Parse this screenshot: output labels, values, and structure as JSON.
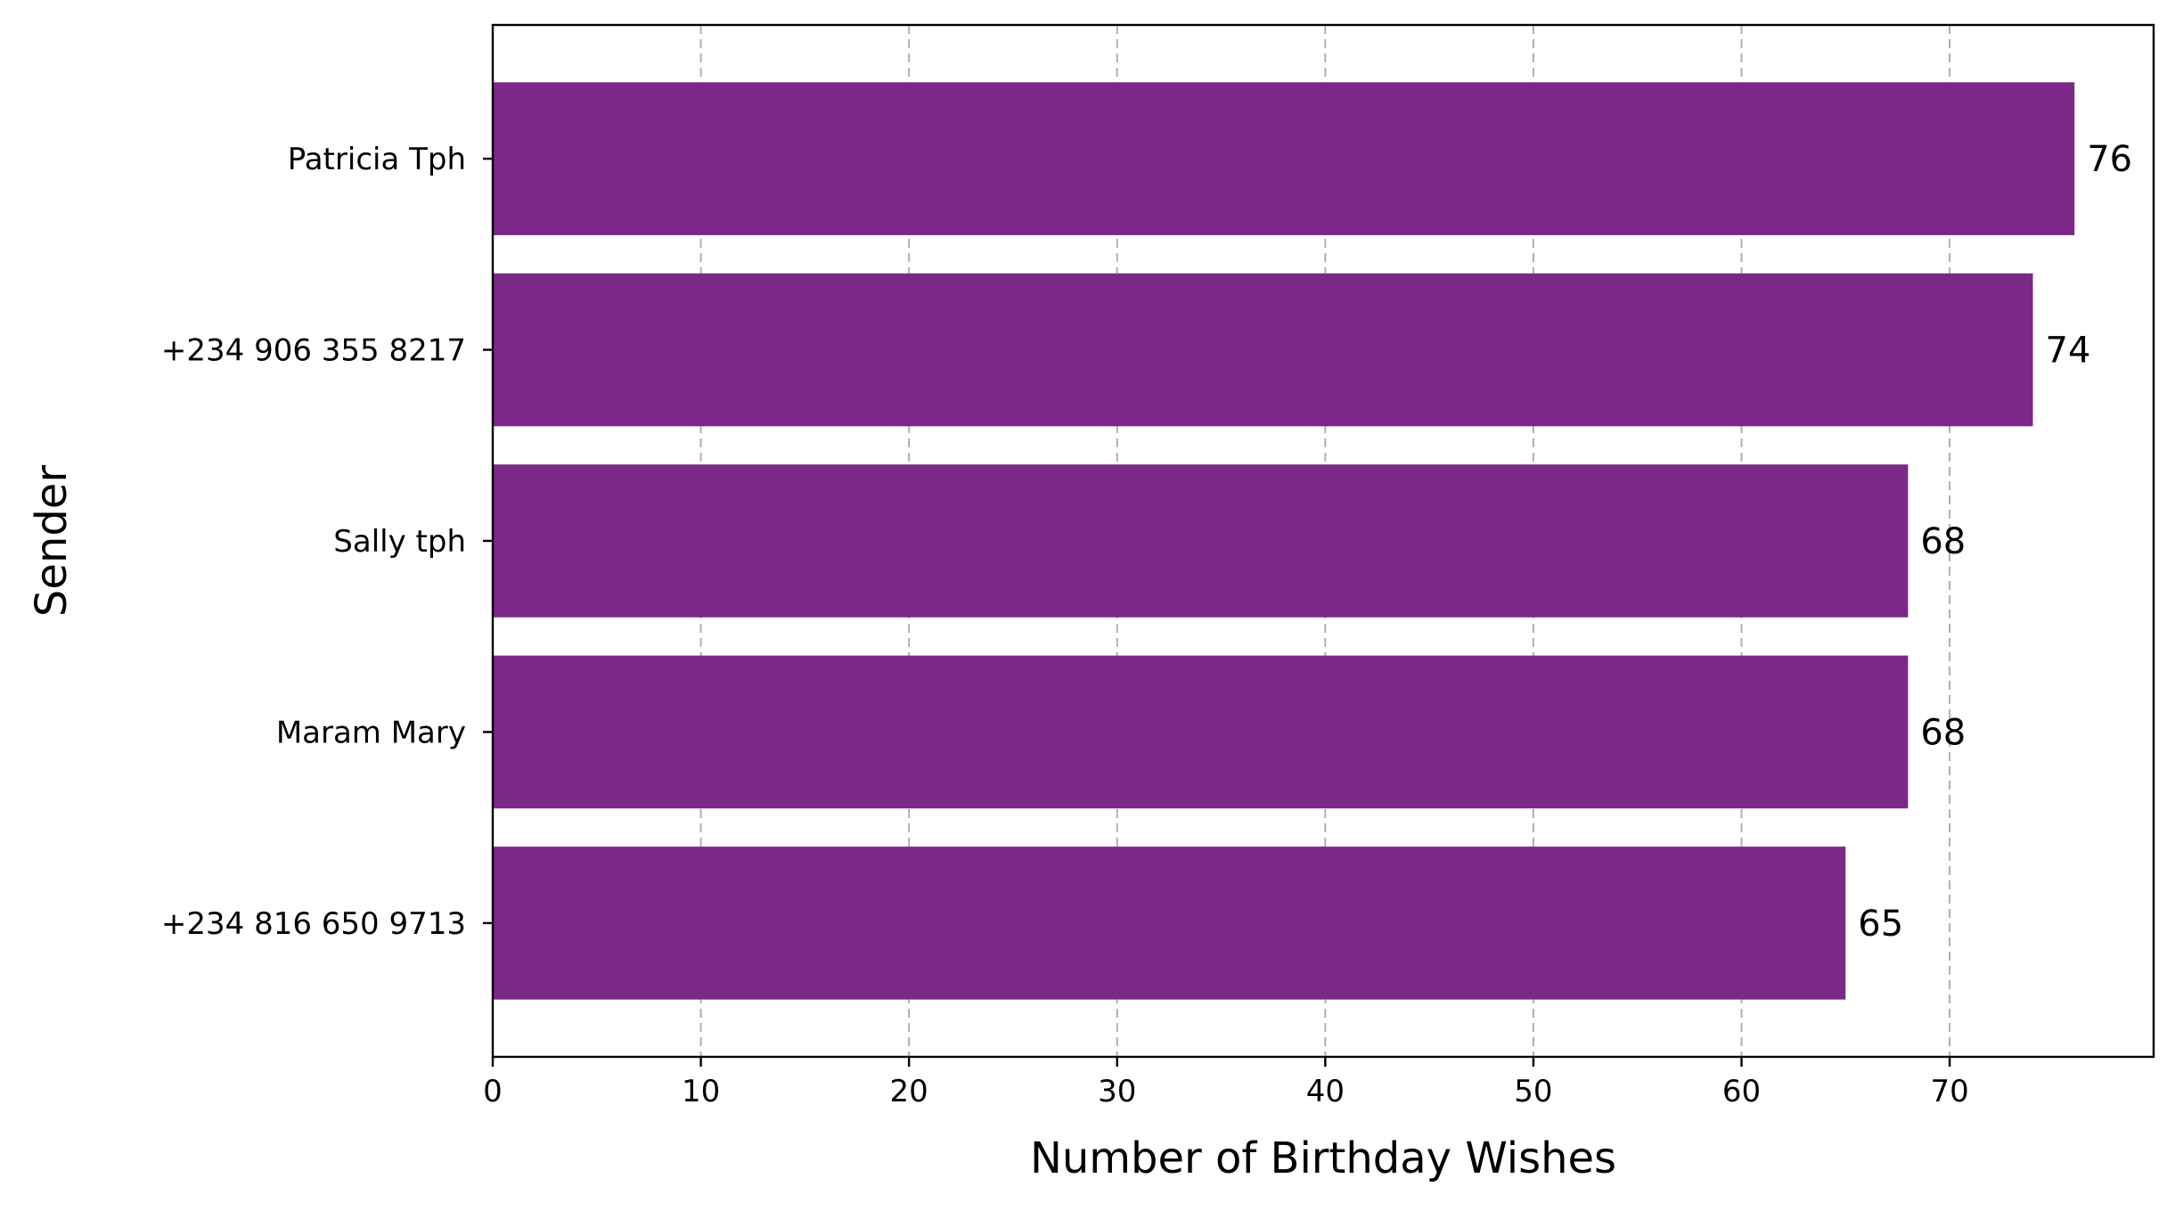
{
  "chart_data": {
    "type": "bar",
    "orientation": "horizontal",
    "title": "",
    "xlabel": "Number of Birthday Wishes",
    "ylabel": "Sender",
    "categories": [
      "Patricia Tph",
      "+234 906 355 8217",
      "Sally tph",
      "Maram Mary",
      "+234 816 650 9713"
    ],
    "values": [
      76,
      74,
      68,
      68,
      65
    ],
    "data_labels": [
      "76",
      "74",
      "68",
      "68",
      "65"
    ],
    "xlim": [
      0,
      79.8
    ],
    "xticks": [
      0,
      10,
      20,
      30,
      40,
      50,
      60,
      70
    ],
    "xtick_labels": [
      "0",
      "10",
      "20",
      "30",
      "40",
      "50",
      "60",
      "70"
    ],
    "grid": "x-axis, dashed",
    "bar_color": "#7b2888"
  }
}
